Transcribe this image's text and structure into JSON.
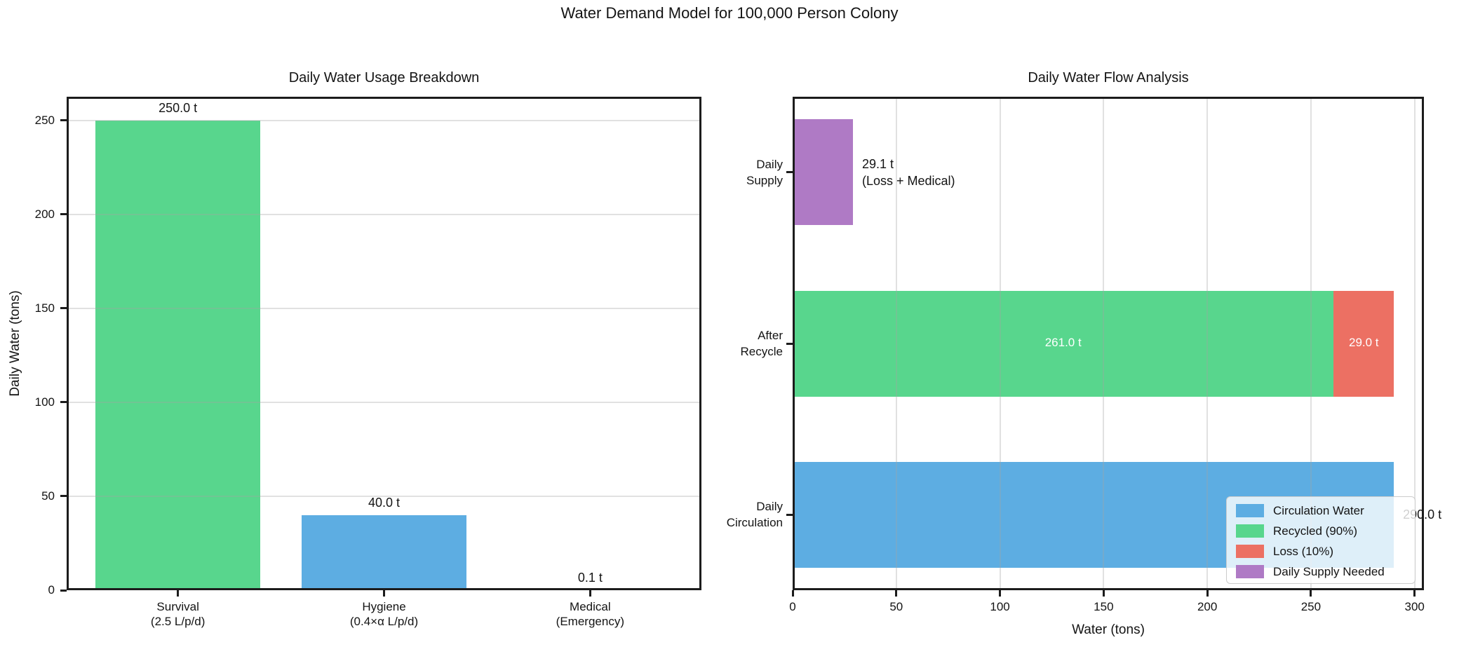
{
  "figure": {
    "title": "Water Demand Model for 100,000 Person Colony"
  },
  "colors": {
    "green": "#58D68D",
    "blue": "#5DADE2",
    "red": "#EC7063",
    "purple": "#AF7AC5",
    "axis": "#1c1c1c",
    "white_label": "#ffffff"
  },
  "chart_data": [
    {
      "type": "bar",
      "title": "Daily Water Usage Breakdown",
      "xlabel": "",
      "ylabel": "Daily Water (tons)",
      "categories": [
        [
          "Survival",
          "(2.5 L/p/d)"
        ],
        [
          "Hygiene",
          "(0.4×α L/p/d)"
        ],
        [
          "Medical",
          "(Emergency)"
        ]
      ],
      "values": [
        250.0,
        40.0,
        0.1
      ],
      "bar_labels": [
        "250.0 t",
        "40.0 t",
        "0.1 t"
      ],
      "bar_colors": [
        "green",
        "blue",
        "red"
      ],
      "yticks": [
        0,
        50,
        100,
        150,
        200,
        250
      ],
      "ylim": [
        0,
        262.5
      ],
      "grid": "y"
    },
    {
      "type": "barh-stacked",
      "title": "Daily Water Flow Analysis",
      "xlabel": "Water (tons)",
      "ylabel": "",
      "rows": [
        {
          "category": [
            "Daily",
            "Supply"
          ],
          "segments": [
            {
              "name": "Daily Supply Needed",
              "value": 29.1,
              "color": "purple"
            }
          ],
          "annotation": {
            "lines": [
              "29.1 t",
              "(Loss + Medical)"
            ]
          }
        },
        {
          "category": [
            "After",
            "Recycle"
          ],
          "segments": [
            {
              "name": "Recycled (90%)",
              "value": 261.0,
              "color": "green",
              "label": "261.0 t"
            },
            {
              "name": "Loss (10%)",
              "value": 29.0,
              "color": "red",
              "label": "29.0 t"
            }
          ]
        },
        {
          "category": [
            "Daily",
            "Circulation"
          ],
          "segments": [
            {
              "name": "Circulation Water",
              "value": 290.0,
              "color": "blue"
            }
          ],
          "annotation": {
            "lines": [
              "290.0 t"
            ]
          }
        }
      ],
      "xticks": [
        0,
        50,
        100,
        150,
        200,
        250,
        300
      ],
      "xlim": [
        0,
        304.5
      ],
      "grid": "x",
      "legend": {
        "position": "lower right",
        "entries": [
          {
            "label": "Circulation Water",
            "color": "blue"
          },
          {
            "label": "Recycled (90%)",
            "color": "green"
          },
          {
            "label": "Loss (10%)",
            "color": "red"
          },
          {
            "label": "Daily Supply Needed",
            "color": "purple"
          }
        ]
      }
    }
  ]
}
